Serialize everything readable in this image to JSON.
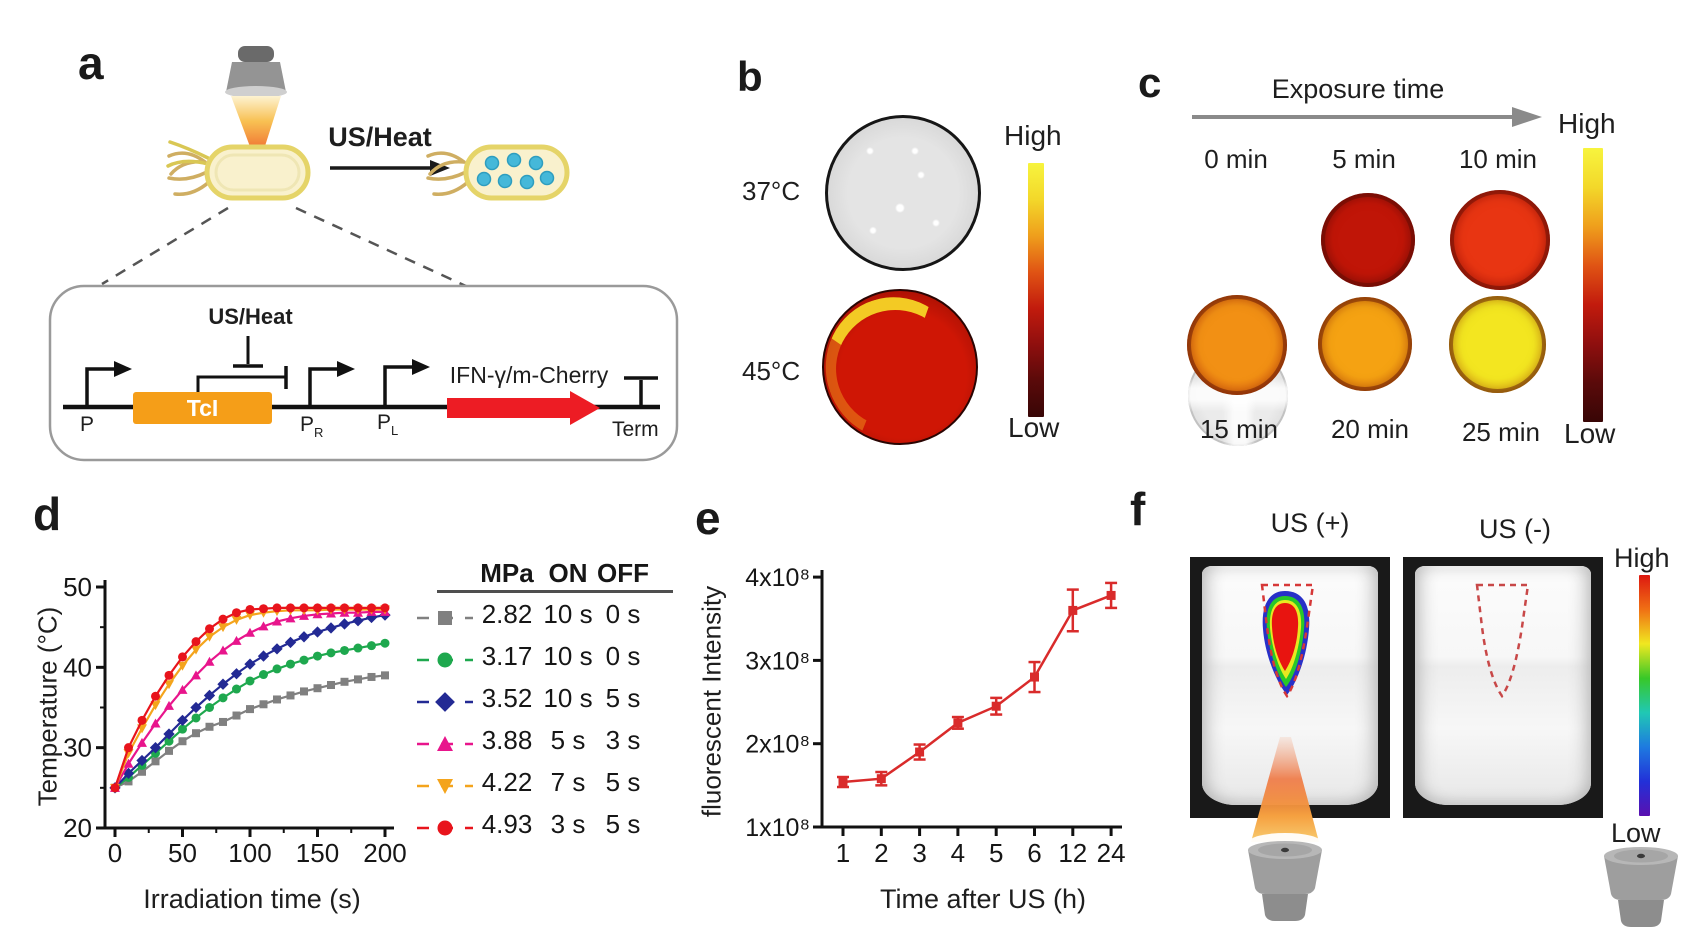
{
  "panels": {
    "a": {
      "label": "a",
      "beam_label": "US/Heat",
      "inset": {
        "inhibitor": "US/Heat",
        "repressor_gene": "TcI",
        "promoter_p": "P",
        "promoter_pr": "P",
        "promoter_pr_sub": "R",
        "promoter_pl": "P",
        "promoter_pl_sub": "L",
        "output_gene": "IFN-γ/m-Cherry",
        "terminator": "Term"
      }
    },
    "b": {
      "label": "b",
      "dish_labels": [
        "37°C",
        "45°C"
      ],
      "dish45_colors": [
        "#cf1605",
        "#a21004",
        "#5e0a04"
      ],
      "colorbar": {
        "high": "High",
        "low": "Low",
        "gradient": [
          "#f7f43e",
          "#f3d82a",
          "#ef9f1c",
          "#e05414",
          "#c21b0d",
          "#8f0f0e",
          "#5a0a0a",
          "#380606"
        ]
      }
    },
    "c": {
      "label": "c",
      "title": "Exposure time",
      "labels_top": [
        "0 min",
        "5 min",
        "10 min"
      ],
      "labels_bottom": [
        "15 min",
        "20 min",
        "25 min"
      ],
      "circle_colors_top": [
        [
          "#ebebeb",
          "#cfcfcf"
        ],
        [
          "#c01507",
          "#7e0d05"
        ],
        [
          "#e83512",
          "#bc1305"
        ]
      ],
      "circle_colors_bottom": [
        [
          "#f29014",
          "#dd4309"
        ],
        [
          "#f5a212",
          "#e2640b"
        ],
        [
          "#f3e620",
          "#efa012"
        ]
      ],
      "colorbar": {
        "high": "High",
        "low": "Low",
        "gradient": [
          "#f7f43e",
          "#f3d82a",
          "#ef9f1c",
          "#e05414",
          "#c21b0d",
          "#8f0f0e",
          "#5a0a0a",
          "#380606"
        ]
      }
    },
    "f": {
      "label": "f",
      "left_title": "US (+)",
      "right_title": "US (-)",
      "colorbar": {
        "high": "High",
        "low": "Low",
        "gradient": [
          "#dd1810",
          "#f07014",
          "#f0e820",
          "#38c828",
          "#20c8b4",
          "#1e7ae0",
          "#2230d8",
          "#5a10b0"
        ]
      }
    }
  },
  "chart_data": [
    {
      "id": "d",
      "type": "line",
      "panel_label": "d",
      "xlabel": "Irradiation time (s)",
      "ylabel": "Temperature (°C)",
      "xlim": [
        0,
        200
      ],
      "ylim": [
        20,
        50
      ],
      "xticks": [
        0,
        50,
        100,
        150,
        200
      ],
      "yticks": [
        20,
        30,
        40,
        50
      ],
      "x_step": 10,
      "legend_headers": [
        "MPa",
        "ON",
        "OFF"
      ],
      "series": [
        {
          "mpa": "2.82",
          "on": "10 s",
          "off": "0 s",
          "color": "#808080",
          "marker": "square",
          "values": [
            25,
            25.8,
            27,
            28.3,
            29.6,
            30.8,
            31.8,
            32.6,
            33.2,
            34,
            34.8,
            35.4,
            36,
            36.5,
            37,
            37.4,
            37.8,
            38.2,
            38.5,
            38.8,
            39
          ]
        },
        {
          "mpa": "3.17",
          "on": "10 s",
          "off": "0 s",
          "color": "#1ea84e",
          "marker": "circle",
          "values": [
            25,
            26.3,
            27.8,
            29.3,
            30.8,
            32.3,
            33.7,
            35,
            36.2,
            37.3,
            38.3,
            39.1,
            39.8,
            40.4,
            40.9,
            41.4,
            41.8,
            42.1,
            42.4,
            42.7,
            43
          ]
        },
        {
          "mpa": "3.52",
          "on": "10 s",
          "off": "5 s",
          "color": "#232a94",
          "marker": "diamond",
          "values": [
            25,
            26.8,
            28.4,
            30,
            31.7,
            33.4,
            35,
            36.5,
            37.9,
            39.2,
            40.4,
            41.4,
            42.3,
            43.1,
            43.8,
            44.4,
            44.9,
            45.4,
            45.8,
            46.2,
            46.5
          ]
        },
        {
          "mpa": "3.88",
          "on": "5 s",
          "off": "3 s",
          "color": "#e8158c",
          "marker": "triangle-up",
          "values": [
            25,
            28,
            30.6,
            33,
            35.2,
            37.2,
            39,
            40.7,
            42.1,
            43.3,
            44.3,
            45.1,
            45.7,
            46.1,
            46.4,
            46.6,
            46.7,
            46.8,
            46.8,
            46.9,
            46.9
          ]
        },
        {
          "mpa": "4.22",
          "on": "7 s",
          "off": "5 s",
          "color": "#f4a41c",
          "marker": "triangle-down",
          "values": [
            25,
            29.3,
            32.4,
            35.3,
            37.9,
            40.2,
            42.2,
            43.8,
            45,
            45.9,
            46.5,
            46.8,
            47,
            47.1,
            47.1,
            47.1,
            47.2,
            47.2,
            47.2,
            47.2,
            47.2
          ]
        },
        {
          "mpa": "4.93",
          "on": "3 s",
          "off": "5 s",
          "color": "#e8141c",
          "marker": "circle",
          "values": [
            25,
            30,
            33.4,
            36.4,
            39,
            41.3,
            43.2,
            44.8,
            46,
            46.8,
            47.2,
            47.3,
            47.4,
            47.4,
            47.4,
            47.4,
            47.4,
            47.4,
            47.4,
            47.4,
            47.4
          ]
        }
      ]
    },
    {
      "id": "e",
      "type": "line",
      "panel_label": "e",
      "xlabel": "Time after US (h)",
      "ylabel": "fluorescent Intensity",
      "categories": [
        "1",
        "2",
        "3",
        "4",
        "5",
        "6",
        "12",
        "24"
      ],
      "values_e8": [
        1.54,
        1.58,
        1.9,
        2.25,
        2.45,
        2.8,
        3.6,
        3.78
      ],
      "errors_e8": [
        0.06,
        0.08,
        0.09,
        0.07,
        0.1,
        0.18,
        0.25,
        0.15
      ],
      "ytick_labels": [
        "1x10⁸",
        "2x10⁸",
        "3x10⁸",
        "4x10⁸"
      ],
      "ylim_e8": [
        1,
        4
      ],
      "color": "#d92b2b",
      "marker": "square"
    }
  ]
}
